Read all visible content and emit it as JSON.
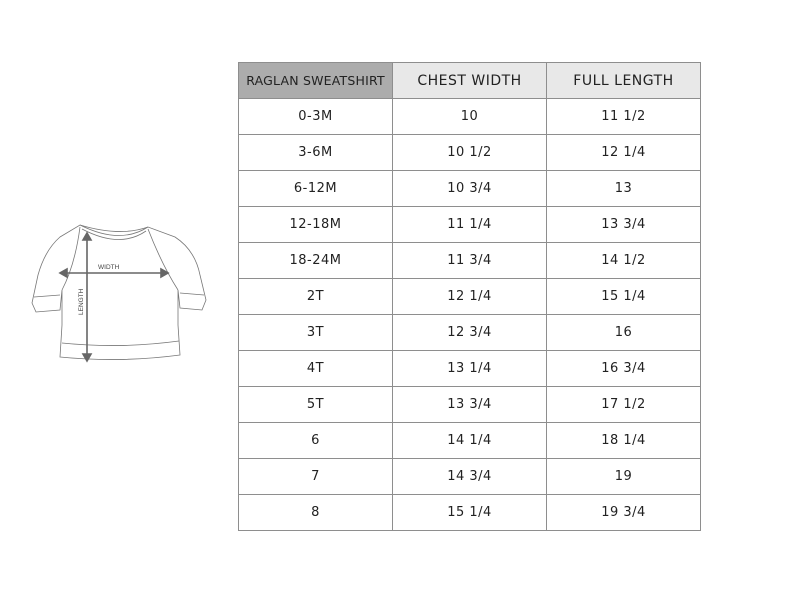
{
  "illustration": {
    "width_label": "WIDTH",
    "length_label": "LENGTH"
  },
  "table": {
    "headers": [
      "RAGLAN SWEATSHIRT",
      "CHEST WIDTH",
      "FULL LENGTH"
    ],
    "rows": [
      [
        "0-3M",
        "10",
        "11 1/2"
      ],
      [
        "3-6M",
        "10 1/2",
        "12 1/4"
      ],
      [
        "6-12M",
        "10 3/4",
        "13"
      ],
      [
        "12-18M",
        "11 1/4",
        "13 3/4"
      ],
      [
        "18-24M",
        "11 3/4",
        "14 1/2"
      ],
      [
        "2T",
        "12 1/4",
        "15 1/4"
      ],
      [
        "3T",
        "12 3/4",
        "16"
      ],
      [
        "4T",
        "13 1/4",
        "16 3/4"
      ],
      [
        "5T",
        "13 3/4",
        "17 1/2"
      ],
      [
        "6",
        "14 1/4",
        "18 1/4"
      ],
      [
        "7",
        "14 3/4",
        "19"
      ],
      [
        "8",
        "15 1/4",
        "19 3/4"
      ]
    ]
  },
  "colors": {
    "header_first": "#acacac",
    "header": "#e8e8e8",
    "border": "#8e8e8e"
  }
}
